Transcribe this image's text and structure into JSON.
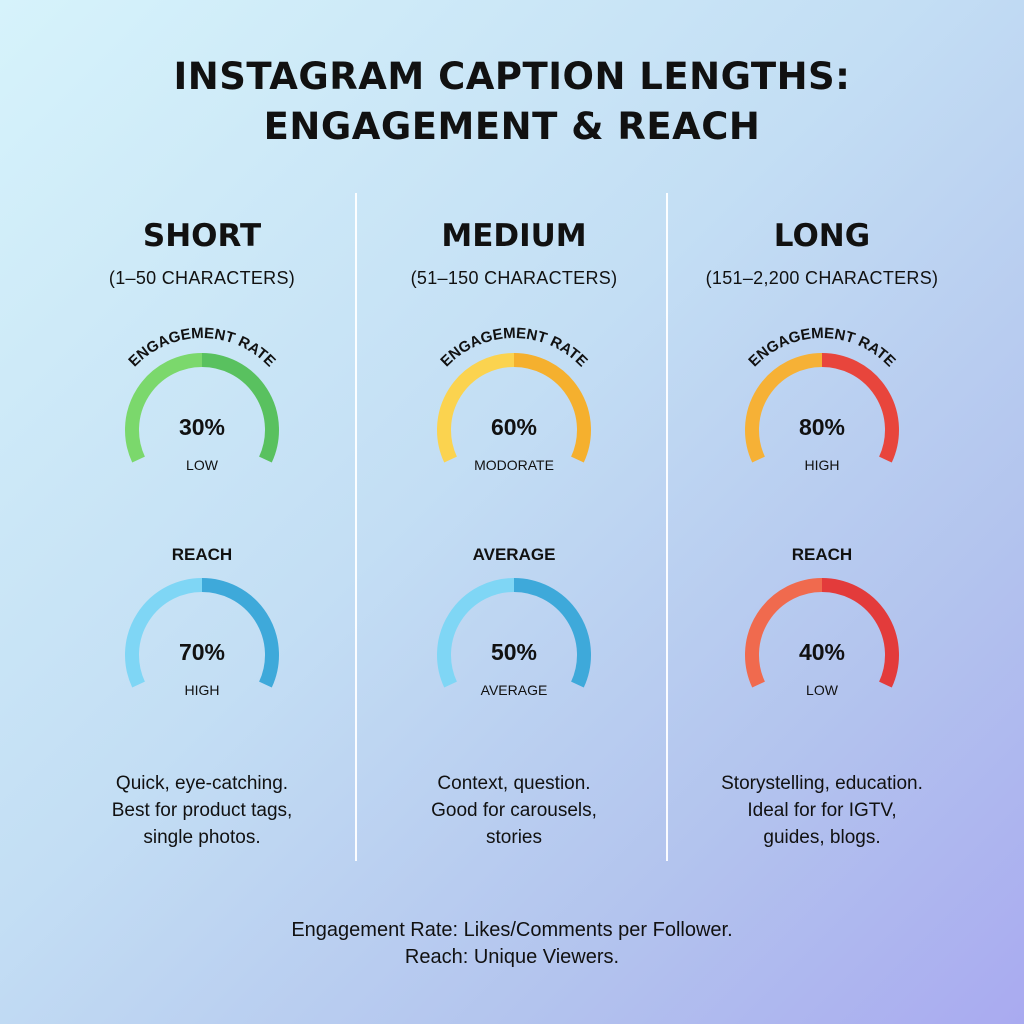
{
  "title": {
    "line1": "INSTAGRAM CAPTION LENGTHS:",
    "line2": "ENGAGEMENT & REACH"
  },
  "columns": [
    {
      "name": "SHORT",
      "range": "(1–50 CHARACTERS)",
      "gauges": [
        {
          "heading": "ENGAGEMENT RATE",
          "curved": true,
          "value": 30,
          "value_text": "30%",
          "level": "LOW",
          "colors": [
            "#7bd86c",
            "#59c15f"
          ]
        },
        {
          "heading": "REACH",
          "curved": false,
          "value": 70,
          "value_text": "70%",
          "level": "HIGH",
          "colors": [
            "#7fd6f5",
            "#3ea9da"
          ]
        }
      ],
      "desc": [
        "Quick, eye-catching.",
        "Best for product tags,",
        "single photos."
      ]
    },
    {
      "name": "MEDIUM",
      "range": "(51–150 CHARACTERS)",
      "gauges": [
        {
          "heading": "ENGAGEMENT RATE",
          "curved": true,
          "value": 60,
          "value_text": "60%",
          "level": "MODORATE",
          "colors": [
            "#fbd34f",
            "#f5b02e"
          ]
        },
        {
          "heading": "AVERAGE",
          "curved": false,
          "value": 50,
          "value_text": "50%",
          "level": "AVERAGE",
          "colors": [
            "#7fd6f5",
            "#3ea9da"
          ]
        }
      ],
      "desc": [
        "Context, question.",
        "Good for carousels,",
        "stories"
      ]
    },
    {
      "name": "LONG",
      "range": "(151–2,200 CHARACTERS)",
      "gauges": [
        {
          "heading": "ENGAGEMENT RATE",
          "curved": true,
          "value": 80,
          "value_text": "80%",
          "level": "HIGH",
          "colors": [
            "#f6b136",
            "#e8453c"
          ]
        },
        {
          "heading": "REACH",
          "curved": false,
          "value": 40,
          "value_text": "40%",
          "level": "LOW",
          "colors": [
            "#f06a4e",
            "#e33b3b"
          ]
        }
      ],
      "desc": [
        "Storystelling, education.",
        "Ideal for for IGTV,",
        "guides, blogs."
      ]
    }
  ],
  "footer": {
    "line1": "Engagement Rate: Likes/Comments per Follower.",
    "line2": "Reach: Unique Viewers."
  },
  "chart_data": [
    {
      "type": "gauge",
      "title": "ENGAGEMENT RATE",
      "categories": [
        "SHORT",
        "MEDIUM",
        "LONG"
      ],
      "values": [
        30,
        60,
        80
      ],
      "unit": "%",
      "labels": [
        "LOW",
        "MODORATE",
        "HIGH"
      ]
    },
    {
      "type": "gauge",
      "title": "REACH",
      "categories": [
        "SHORT",
        "MEDIUM",
        "LONG"
      ],
      "values": [
        70,
        50,
        40
      ],
      "unit": "%",
      "labels": [
        "HIGH",
        "AVERAGE",
        "LOW"
      ]
    }
  ]
}
